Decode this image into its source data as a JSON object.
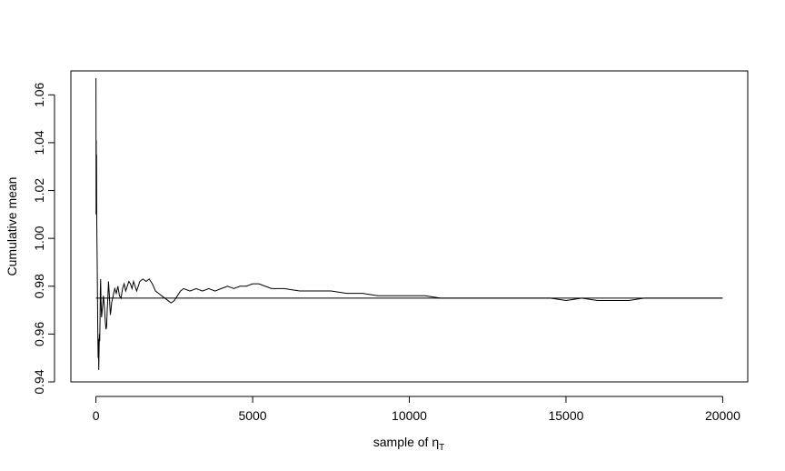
{
  "chart_data": {
    "type": "line",
    "title": "",
    "xlabel": "sample of η",
    "xlabel_subscript": "T",
    "ylabel": "Cumulative mean",
    "xlim": [
      -800,
      20800
    ],
    "ylim": [
      0.94,
      1.07
    ],
    "xticks": [
      0,
      5000,
      10000,
      15000,
      20000
    ],
    "xtick_labels": [
      "0",
      "5000",
      "10000",
      "15000",
      "20000"
    ],
    "yticks": [
      0.94,
      0.96,
      0.98,
      1.0,
      1.02,
      1.04,
      1.06
    ],
    "ytick_labels": [
      "0.94",
      "0.96",
      "0.98",
      "1.00",
      "1.02",
      "1.04",
      "1.06"
    ],
    "grid": false,
    "hline": {
      "y": 0.975,
      "x_range": [
        0,
        20000
      ]
    },
    "series": [
      {
        "x": [
          1,
          5,
          10,
          15,
          20,
          25,
          30,
          40,
          50,
          60,
          70,
          80,
          90,
          100,
          110,
          120,
          130,
          140,
          150,
          160,
          170,
          180,
          200,
          220,
          240,
          260,
          280,
          300,
          320,
          340,
          360,
          380,
          400,
          420,
          440,
          460,
          480,
          500,
          550,
          600,
          650,
          700,
          750,
          800,
          850,
          900,
          950,
          1000,
          1050,
          1100,
          1150,
          1200,
          1250,
          1300,
          1350,
          1400,
          1500,
          1600,
          1700,
          1800,
          1900,
          2000,
          2100,
          2200,
          2300,
          2400,
          2500,
          2600,
          2700,
          2800,
          3000,
          3200,
          3400,
          3600,
          3800,
          4000,
          4200,
          4400,
          4600,
          4800,
          5000,
          5200,
          5400,
          5600,
          5800,
          6000,
          6500,
          7000,
          7500,
          8000,
          8500,
          9000,
          9500,
          10000,
          10500,
          11000,
          11500,
          12000,
          12500,
          13000,
          13500,
          14000,
          14500,
          15000,
          15500,
          16000,
          16500,
          17000,
          17500,
          18000,
          18500,
          19000,
          19500,
          20000
        ],
        "y": [
          1.067,
          1.01,
          1.041,
          1.012,
          1.035,
          1.01,
          1.002,
          0.99,
          0.975,
          0.96,
          0.95,
          0.958,
          0.945,
          0.953,
          0.96,
          0.957,
          0.965,
          0.978,
          0.983,
          0.975,
          0.97,
          0.967,
          0.97,
          0.973,
          0.976,
          0.973,
          0.969,
          0.965,
          0.962,
          0.963,
          0.97,
          0.975,
          0.982,
          0.978,
          0.973,
          0.968,
          0.97,
          0.973,
          0.976,
          0.979,
          0.977,
          0.98,
          0.976,
          0.975,
          0.979,
          0.981,
          0.978,
          0.98,
          0.982,
          0.981,
          0.979,
          0.982,
          0.98,
          0.978,
          0.98,
          0.982,
          0.983,
          0.982,
          0.983,
          0.981,
          0.978,
          0.977,
          0.976,
          0.975,
          0.974,
          0.973,
          0.974,
          0.976,
          0.978,
          0.979,
          0.978,
          0.979,
          0.978,
          0.979,
          0.978,
          0.979,
          0.98,
          0.979,
          0.98,
          0.98,
          0.981,
          0.981,
          0.98,
          0.979,
          0.979,
          0.979,
          0.978,
          0.978,
          0.978,
          0.977,
          0.977,
          0.976,
          0.976,
          0.976,
          0.976,
          0.975,
          0.975,
          0.975,
          0.975,
          0.975,
          0.975,
          0.975,
          0.975,
          0.974,
          0.975,
          0.974,
          0.974,
          0.974,
          0.975,
          0.975,
          0.975,
          0.975,
          0.975,
          0.975
        ]
      }
    ]
  }
}
